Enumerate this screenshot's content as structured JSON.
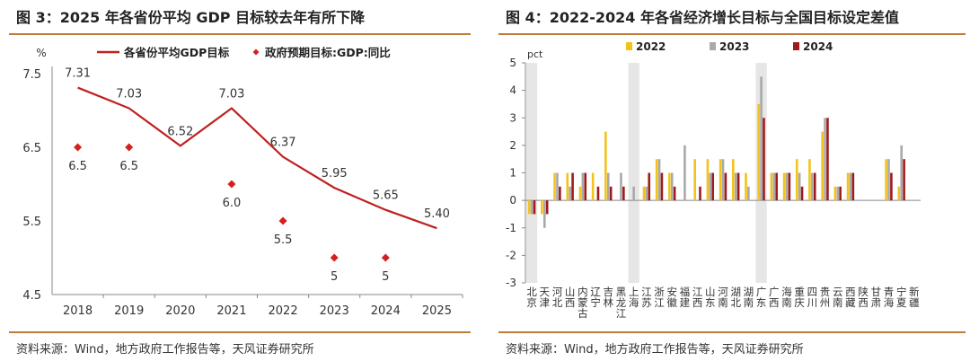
{
  "left": {
    "title": "图 3：2025 年各省份平均 GDP 目标较去年有所下降",
    "source": "资料来源：Wind，地方政府工作报告等，天风证券研究所",
    "unit": "%",
    "colors": {
      "line": "#c0201f",
      "marker": "#d42020"
    },
    "chart_data": {
      "type": "line",
      "categories": [
        "2018",
        "2019",
        "2020",
        "2021",
        "2022",
        "2023",
        "2024",
        "2025"
      ],
      "series": [
        {
          "name": "各省份平均GDP目标",
          "kind": "line",
          "values": [
            7.31,
            7.03,
            6.52,
            7.03,
            6.37,
            5.95,
            5.65,
            5.4
          ],
          "labels": [
            "7.31",
            "7.03",
            "6.52",
            "7.03",
            "6.37",
            "5.95",
            "5.65",
            "5.40"
          ]
        },
        {
          "name": "政府预期目标:GDP:同比",
          "kind": "scatter",
          "values": [
            6.5,
            6.5,
            null,
            6.0,
            5.5,
            5,
            5,
            null
          ],
          "labels": [
            "6.5",
            "6.5",
            "",
            "6.0",
            "5.5",
            "5",
            "5",
            ""
          ]
        }
      ],
      "ylim": [
        4.5,
        7.5
      ],
      "yticks": [
        4.5,
        5.5,
        6.5,
        7.5
      ],
      "ylabel": "%",
      "legend": "top"
    }
  },
  "right": {
    "title": "图 4：2022-2024 年各省经济增长目标与全国目标设定差值",
    "source": "资料来源：Wind，地方政府工作报告等，天风证券研究所",
    "unit": "pct",
    "colors": {
      "s2022": "#f2c31c",
      "s2023": "#a9a9a9",
      "s2024": "#9e1b1b",
      "shade": "#e6e6e6"
    },
    "chart_data": {
      "type": "bar",
      "categories": [
        "北京",
        "天津",
        "河北",
        "山西",
        "内蒙古",
        "辽宁",
        "吉林",
        "黑龙江",
        "上海",
        "江苏",
        "浙江",
        "安徽",
        "福建",
        "江西",
        "山东",
        "河南",
        "湖北",
        "湖南",
        "广东",
        "广西",
        "海南",
        "重庆",
        "四川",
        "贵州",
        "云南",
        "西藏",
        "陕西",
        "甘肃",
        "青海",
        "宁夏",
        "新疆"
      ],
      "shaded": [
        "北京",
        "上海",
        "广东"
      ],
      "series": [
        {
          "name": "2022",
          "values": [
            -0.5,
            -0.5,
            1,
            1,
            0.5,
            1,
            2.5,
            0,
            0,
            0.5,
            1.5,
            1,
            0,
            1.5,
            1.5,
            1.5,
            1.5,
            1,
            3.5,
            1,
            1,
            1.5,
            1.5,
            2.5,
            0.5,
            1,
            0,
            0,
            1.5,
            0.5,
            0
          ]
        },
        {
          "name": "2023",
          "values": [
            -0.5,
            -1,
            1,
            0.5,
            1,
            0,
            1,
            1,
            0.5,
            0.5,
            1.5,
            1,
            2,
            0,
            1,
            1.5,
            1,
            0.5,
            4.5,
            1,
            1,
            1,
            1,
            3,
            0.5,
            1,
            0,
            0,
            1.5,
            2,
            0
          ]
        },
        {
          "name": "2024",
          "values": [
            -0.5,
            -0.5,
            0.5,
            1,
            1,
            0.5,
            0.5,
            0.5,
            0,
            1,
            1,
            0.5,
            0,
            0.5,
            1,
            1,
            1,
            0,
            3,
            1,
            1,
            0.5,
            1,
            3,
            0.5,
            1,
            0,
            0,
            1,
            1.5,
            0
          ]
        }
      ],
      "ylim": [
        -3,
        5
      ],
      "yticks": [
        -3,
        -2,
        -1,
        0,
        1,
        2,
        3,
        4,
        5
      ],
      "ylabel": "pct",
      "legend": "top"
    }
  }
}
